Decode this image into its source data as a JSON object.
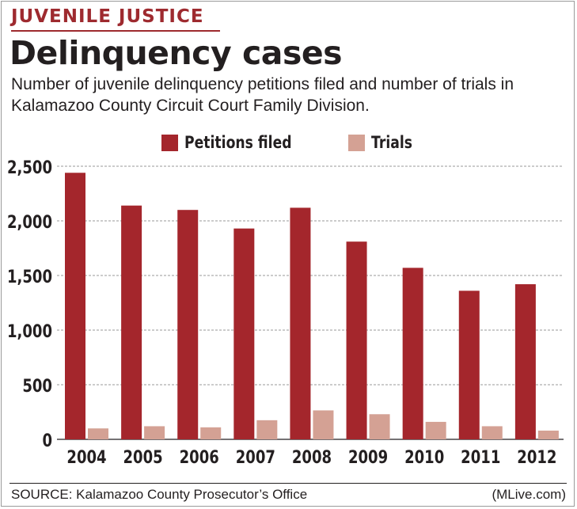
{
  "header": {
    "kicker": "JUVENILE JUSTICE",
    "title": "Delinquency cases",
    "subtitle": "Number of juvenile delinquency petitions filed and number of trials in Kalamazoo County Circuit Court Family Division."
  },
  "footer": {
    "source": "SOURCE: Kalamazoo County Prosecutor’s Office",
    "credit": "(MLive.com)"
  },
  "colors": {
    "accent": "#9e2a2f",
    "petitions": "#a4262c",
    "trials": "#d4a194",
    "grid": "#9a9a9a"
  },
  "chart_data": {
    "type": "bar",
    "title": "Delinquency cases",
    "categories": [
      "2004",
      "2005",
      "2006",
      "2007",
      "2008",
      "2009",
      "2010",
      "2011",
      "2012"
    ],
    "series": [
      {
        "name": "Petitions filed",
        "values": [
          2440,
          2140,
          2100,
          1930,
          2120,
          1810,
          1570,
          1360,
          1420
        ]
      },
      {
        "name": "Trials",
        "values": [
          100,
          120,
          110,
          175,
          265,
          230,
          160,
          120,
          80
        ]
      }
    ],
    "xlabel": "",
    "ylabel": "",
    "ylim": [
      0,
      2500
    ],
    "yticks": [
      0,
      500,
      1000,
      1500,
      2000,
      2500
    ],
    "ytick_labels": [
      "0",
      "500",
      "1,000",
      "1,500",
      "2,000",
      "2,500"
    ],
    "grid": true,
    "legend": "top-center"
  }
}
